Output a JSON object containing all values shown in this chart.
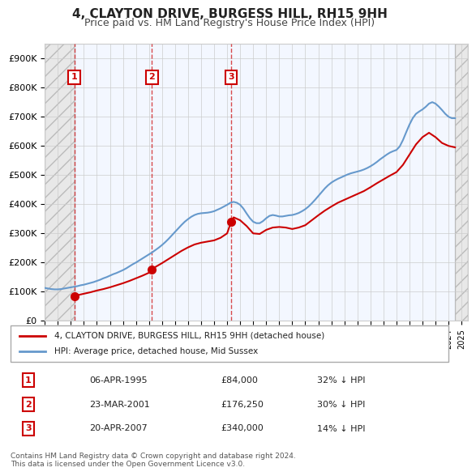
{
  "title": "4, CLAYTON DRIVE, BURGESS HILL, RH15 9HH",
  "subtitle": "Price paid vs. HM Land Registry's House Price Index (HPI)",
  "ylabel": "",
  "xlim_start": 1993.0,
  "xlim_end": 2025.5,
  "ylim_min": 0,
  "ylim_max": 950000,
  "yticks": [
    0,
    100000,
    200000,
    300000,
    400000,
    500000,
    600000,
    700000,
    800000,
    900000
  ],
  "ytick_labels": [
    "£0",
    "£100K",
    "£200K",
    "£300K",
    "£400K",
    "£500K",
    "£600K",
    "£700K",
    "£800K",
    "£900K"
  ],
  "bg_color": "#f0f4ff",
  "plot_bg": "#ffffff",
  "hpi_color": "#6699cc",
  "price_color": "#cc0000",
  "hatch_color": "#cccccc",
  "transactions": [
    {
      "num": 1,
      "date_x": 1995.27,
      "price": 84000,
      "label": "06-APR-1995",
      "price_str": "£84,000",
      "hpi_pct": "32% ↓ HPI"
    },
    {
      "num": 2,
      "date_x": 2001.23,
      "price": 176250,
      "label": "23-MAR-2001",
      "price_str": "£176,250",
      "hpi_pct": "30% ↓ HPI"
    },
    {
      "num": 3,
      "date_x": 2007.31,
      "price": 340000,
      "label": "20-APR-2007",
      "price_str": "£340,000",
      "hpi_pct": "14% ↓ HPI"
    }
  ],
  "legend_line1": "4, CLAYTON DRIVE, BURGESS HILL, RH15 9HH (detached house)",
  "legend_line2": "HPI: Average price, detached house, Mid Sussex",
  "footer": "Contains HM Land Registry data © Crown copyright and database right 2024.\nThis data is licensed under the Open Government Licence v3.0.",
  "hpi_data_x": [
    1993.0,
    1993.25,
    1993.5,
    1993.75,
    1994.0,
    1994.25,
    1994.5,
    1994.75,
    1995.0,
    1995.25,
    1995.5,
    1995.75,
    1996.0,
    1996.25,
    1996.5,
    1996.75,
    1997.0,
    1997.25,
    1997.5,
    1997.75,
    1998.0,
    1998.25,
    1998.5,
    1998.75,
    1999.0,
    1999.25,
    1999.5,
    1999.75,
    2000.0,
    2000.25,
    2000.5,
    2000.75,
    2001.0,
    2001.25,
    2001.5,
    2001.75,
    2002.0,
    2002.25,
    2002.5,
    2002.75,
    2003.0,
    2003.25,
    2003.5,
    2003.75,
    2004.0,
    2004.25,
    2004.5,
    2004.75,
    2005.0,
    2005.25,
    2005.5,
    2005.75,
    2006.0,
    2006.25,
    2006.5,
    2006.75,
    2007.0,
    2007.25,
    2007.5,
    2007.75,
    2008.0,
    2008.25,
    2008.5,
    2008.75,
    2009.0,
    2009.25,
    2009.5,
    2009.75,
    2010.0,
    2010.25,
    2010.5,
    2010.75,
    2011.0,
    2011.25,
    2011.5,
    2011.75,
    2012.0,
    2012.25,
    2012.5,
    2012.75,
    2013.0,
    2013.25,
    2013.5,
    2013.75,
    2014.0,
    2014.25,
    2014.5,
    2014.75,
    2015.0,
    2015.25,
    2015.5,
    2015.75,
    2016.0,
    2016.25,
    2016.5,
    2016.75,
    2017.0,
    2017.25,
    2017.5,
    2017.75,
    2018.0,
    2018.25,
    2018.5,
    2018.75,
    2019.0,
    2019.25,
    2019.5,
    2019.75,
    2020.0,
    2020.25,
    2020.5,
    2020.75,
    2021.0,
    2021.25,
    2021.5,
    2021.75,
    2022.0,
    2022.25,
    2022.5,
    2022.75,
    2023.0,
    2023.25,
    2023.5,
    2023.75,
    2024.0,
    2024.25,
    2024.5
  ],
  "hpi_data_y": [
    113000,
    111000,
    109000,
    108000,
    108000,
    109000,
    111000,
    113000,
    115000,
    117000,
    119000,
    122000,
    124000,
    127000,
    130000,
    133000,
    137000,
    141000,
    146000,
    150000,
    155000,
    160000,
    164000,
    169000,
    174000,
    180000,
    187000,
    194000,
    200000,
    207000,
    214000,
    221000,
    228000,
    235000,
    243000,
    251000,
    260000,
    270000,
    281000,
    293000,
    305000,
    317000,
    329000,
    340000,
    349000,
    357000,
    363000,
    367000,
    369000,
    370000,
    371000,
    373000,
    376000,
    381000,
    386000,
    392000,
    398000,
    405000,
    408000,
    405000,
    398000,
    385000,
    368000,
    352000,
    340000,
    335000,
    335000,
    342000,
    352000,
    360000,
    363000,
    361000,
    358000,
    358000,
    360000,
    362000,
    363000,
    366000,
    370000,
    376000,
    383000,
    392000,
    403000,
    415000,
    428000,
    441000,
    454000,
    465000,
    474000,
    481000,
    487000,
    492000,
    497000,
    502000,
    506000,
    509000,
    512000,
    515000,
    519000,
    524000,
    530000,
    537000,
    545000,
    554000,
    562000,
    570000,
    577000,
    582000,
    586000,
    598000,
    620000,
    647000,
    673000,
    695000,
    710000,
    718000,
    725000,
    734000,
    745000,
    750000,
    745000,
    735000,
    723000,
    710000,
    700000,
    695000,
    695000
  ],
  "price_line_x": [
    1995.27,
    1995.5,
    1996.0,
    1996.5,
    1997.0,
    1997.5,
    1998.0,
    1998.5,
    1999.0,
    1999.5,
    2000.0,
    2000.5,
    2001.0,
    2001.23,
    2001.5,
    2002.0,
    2002.5,
    2003.0,
    2003.5,
    2004.0,
    2004.5,
    2005.0,
    2005.5,
    2006.0,
    2006.5,
    2007.0,
    2007.31,
    2007.5,
    2008.0,
    2008.5,
    2009.0,
    2009.5,
    2010.0,
    2010.5,
    2011.0,
    2011.5,
    2012.0,
    2012.5,
    2013.0,
    2013.5,
    2014.0,
    2014.5,
    2015.0,
    2015.5,
    2016.0,
    2016.5,
    2017.0,
    2017.5,
    2018.0,
    2018.5,
    2019.0,
    2019.5,
    2020.0,
    2020.5,
    2021.0,
    2021.5,
    2022.0,
    2022.5,
    2023.0,
    2023.5,
    2024.0,
    2024.5
  ],
  "price_line_y": [
    84000,
    88000,
    93000,
    98000,
    104000,
    109000,
    115000,
    122000,
    129000,
    137000,
    146000,
    155000,
    165000,
    176250,
    185000,
    198000,
    212000,
    226000,
    240000,
    252000,
    262000,
    268000,
    272000,
    276000,
    285000,
    300000,
    340000,
    355000,
    345000,
    325000,
    300000,
    298000,
    312000,
    320000,
    322000,
    320000,
    315000,
    320000,
    328000,
    345000,
    362000,
    378000,
    392000,
    405000,
    415000,
    425000,
    435000,
    445000,
    458000,
    472000,
    485000,
    498000,
    510000,
    535000,
    570000,
    605000,
    630000,
    645000,
    630000,
    610000,
    600000,
    595000
  ]
}
